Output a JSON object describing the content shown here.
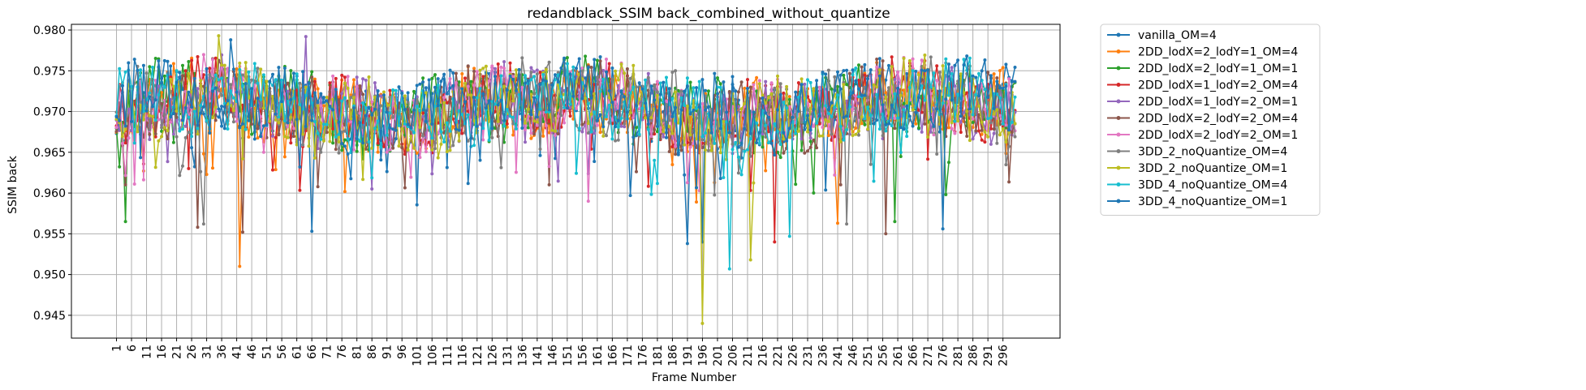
{
  "chart_data": {
    "type": "line",
    "title": "redandblack_SSIM back_combined_without_quantize",
    "xlabel": "Frame Number",
    "ylabel": "SSIM back",
    "xlim": [
      -14,
      315
    ],
    "ylim": [
      0.9422,
      0.9807
    ],
    "grid": true,
    "legend_position": "outside-top-right",
    "x_ticks": [
      1,
      6,
      11,
      16,
      21,
      26,
      31,
      36,
      41,
      46,
      51,
      56,
      61,
      66,
      71,
      76,
      81,
      86,
      91,
      96,
      101,
      106,
      111,
      116,
      121,
      126,
      131,
      136,
      141,
      146,
      151,
      156,
      161,
      166,
      171,
      176,
      181,
      186,
      191,
      196,
      201,
      206,
      211,
      216,
      221,
      226,
      231,
      236,
      241,
      246,
      251,
      256,
      261,
      266,
      271,
      276,
      281,
      286,
      291,
      296
    ],
    "y_ticks": [
      0.945,
      0.95,
      0.955,
      0.96,
      0.965,
      0.97,
      0.975,
      0.98
    ],
    "y_tick_labels": [
      "0.945",
      "0.950",
      "0.955",
      "0.960",
      "0.965",
      "0.970",
      "0.975",
      "0.980"
    ],
    "frames": {
      "start": 1,
      "end": 300
    },
    "series": [
      {
        "name": "vanilla_OM=4",
        "color": "#1f77b4",
        "base": 0.9705,
        "amplitude": 0.004,
        "seed": 11,
        "spikes": [
          [
            66,
            0.9553
          ],
          [
            191,
            0.9538
          ],
          [
            196,
            0.954
          ]
        ]
      },
      {
        "name": "2DD_lodX=2_lodY=1_OM=4",
        "color": "#ff7f0e",
        "base": 0.9705,
        "amplitude": 0.004,
        "seed": 23,
        "spikes": [
          [
            42,
            0.951
          ],
          [
            241,
            0.9563
          ]
        ]
      },
      {
        "name": "2DD_lodX=2_lodY=1_OM=1",
        "color": "#2ca02c",
        "base": 0.9705,
        "amplitude": 0.004,
        "seed": 37,
        "spikes": [
          [
            4,
            0.9565
          ],
          [
            260,
            0.9565
          ]
        ]
      },
      {
        "name": "2DD_lodX=1_lodY=2_OM=4",
        "color": "#d62728",
        "base": 0.9705,
        "amplitude": 0.004,
        "seed": 41,
        "spikes": [
          [
            220,
            0.954
          ]
        ]
      },
      {
        "name": "2DD_lodX=1_lodY=2_OM=1",
        "color": "#9467bd",
        "base": 0.9705,
        "amplitude": 0.004,
        "seed": 53,
        "spikes": [
          [
            64,
            0.9792
          ]
        ]
      },
      {
        "name": "2DD_lodX=2_lodY=2_OM=4",
        "color": "#8c564b",
        "base": 0.9705,
        "amplitude": 0.004,
        "seed": 67,
        "spikes": [
          [
            43,
            0.9552
          ],
          [
            28,
            0.9558
          ],
          [
            257,
            0.955
          ]
        ]
      },
      {
        "name": "2DD_lodX=2_lodY=2_OM=1",
        "color": "#e377c2",
        "base": 0.9705,
        "amplitude": 0.004,
        "seed": 79,
        "spikes": [
          [
            158,
            0.959
          ]
        ]
      },
      {
        "name": "3DD_2_noQuantize_OM=4",
        "color": "#7f7f7f",
        "base": 0.9705,
        "amplitude": 0.004,
        "seed": 83,
        "spikes": [
          [
            30,
            0.9562
          ],
          [
            244,
            0.9562
          ]
        ]
      },
      {
        "name": "3DD_2_noQuantize_OM=1",
        "color": "#bcbd22",
        "base": 0.9705,
        "amplitude": 0.004,
        "seed": 97,
        "spikes": [
          [
            35,
            0.9793
          ],
          [
            196,
            0.944
          ],
          [
            212,
            0.9518
          ]
        ]
      },
      {
        "name": "3DD_4_noQuantize_OM=4",
        "color": "#17becf",
        "base": 0.9705,
        "amplitude": 0.004,
        "seed": 101,
        "spikes": [
          [
            205,
            0.9507
          ],
          [
            225,
            0.9547
          ]
        ]
      },
      {
        "name": "3DD_4_noQuantize_OM=1",
        "color": "#1f77b4",
        "base": 0.971,
        "amplitude": 0.004,
        "seed": 113,
        "spikes": [
          [
            39,
            0.9788
          ],
          [
            276,
            0.9556
          ]
        ]
      }
    ]
  }
}
